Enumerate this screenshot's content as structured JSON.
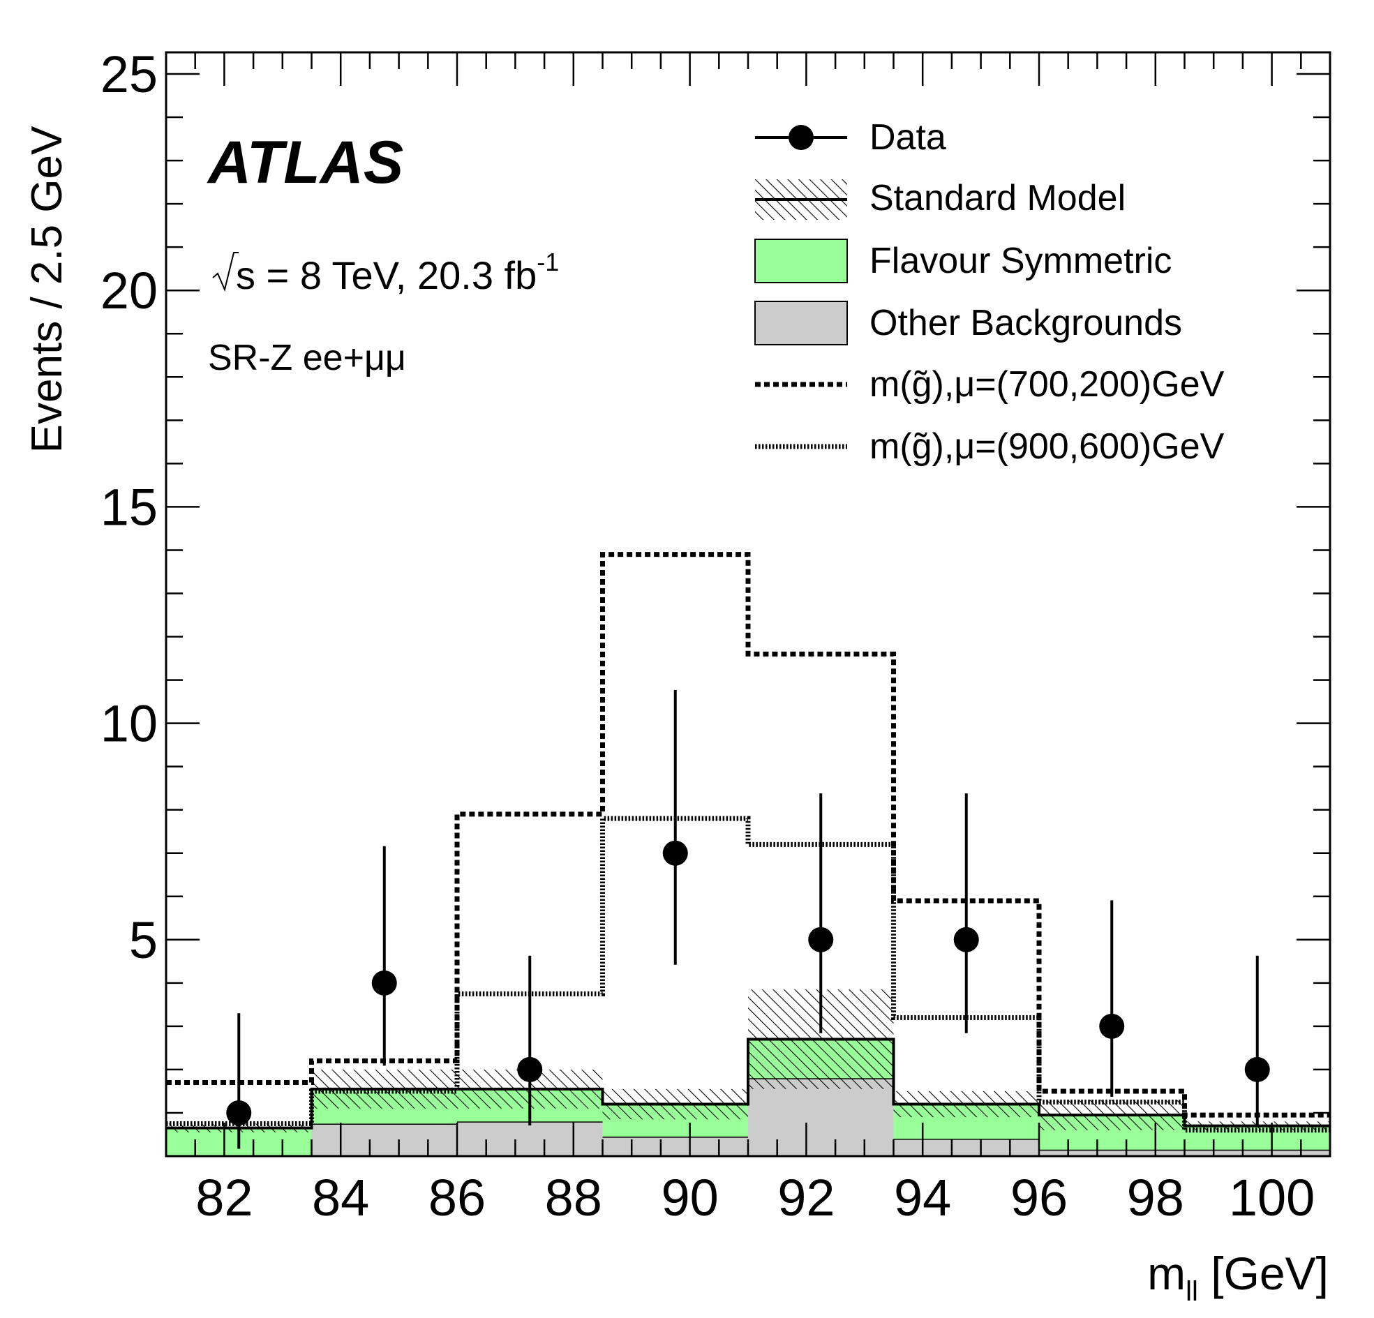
{
  "annotations": {
    "experiment": "ATLAS",
    "energy_prefix": "s",
    "energy_rest": " = 8 TeV, 20.3 fb",
    "lumi_exp": "-1",
    "region": "SR-Z ee+μμ"
  },
  "legend": {
    "data": "Data",
    "sm": "Standard Model",
    "fs": "Flavour Symmetric",
    "other": "Other Backgrounds",
    "sig1": "m(g̃),μ=(700,200)GeV",
    "sig2": "m(g̃),μ=(900,600)GeV"
  },
  "colors": {
    "flavour_symmetric": "#99ff99",
    "other_backgrounds": "#cccccc",
    "hatch": "#000000"
  },
  "chart_data": {
    "type": "bar",
    "ylabel": "Events / 2.5 GeV",
    "xlabel_main": "m",
    "xlabel_sub": "ll",
    "xlabel_unit": " [GeV]",
    "xlim": [
      81,
      101
    ],
    "ylim": [
      0,
      25.5
    ],
    "xticks": [
      82,
      84,
      86,
      88,
      90,
      92,
      94,
      96,
      98,
      100
    ],
    "yticks": [
      5,
      10,
      15,
      20,
      25
    ],
    "bin_edges": [
      81,
      83.5,
      86,
      88.5,
      91,
      93.5,
      96,
      98.5,
      101
    ],
    "series": [
      {
        "name": "Other Backgrounds",
        "values": [
          0.0,
          0.75,
          0.8,
          0.45,
          1.8,
          0.4,
          0.15,
          0.15
        ]
      },
      {
        "name": "Flavour Symmetric",
        "values": [
          0.65,
          0.8,
          0.75,
          0.75,
          0.9,
          0.8,
          0.8,
          0.55
        ]
      },
      {
        "name": "Standard Model",
        "values": [
          0.65,
          1.55,
          1.55,
          1.2,
          2.7,
          1.2,
          0.95,
          0.7
        ]
      },
      {
        "name": "Standard Model uncertainty",
        "values": [
          0.1,
          0.45,
          0.45,
          0.35,
          1.15,
          0.3,
          0.35,
          0.1
        ]
      },
      {
        "name": "m(g̃),μ=(700,200)GeV",
        "values": [
          1.7,
          2.2,
          7.9,
          13.9,
          11.6,
          5.9,
          1.5,
          0.95
        ]
      },
      {
        "name": "m(g̃),μ=(900,600)GeV",
        "values": [
          0.75,
          1.5,
          3.75,
          7.8,
          7.2,
          3.2,
          1.25,
          0.6
        ]
      }
    ],
    "data_points": {
      "name": "Data",
      "x": [
        82.25,
        84.75,
        87.25,
        89.75,
        92.25,
        94.75,
        97.25,
        99.75
      ],
      "y": [
        1,
        4,
        2,
        7,
        5,
        5,
        3,
        2
      ],
      "err_low": [
        0.83,
        1.91,
        1.29,
        2.58,
        2.16,
        2.16,
        1.63,
        1.29
      ],
      "err_high": [
        2.3,
        3.16,
        2.63,
        3.77,
        3.38,
        3.38,
        2.91,
        2.63
      ]
    }
  }
}
